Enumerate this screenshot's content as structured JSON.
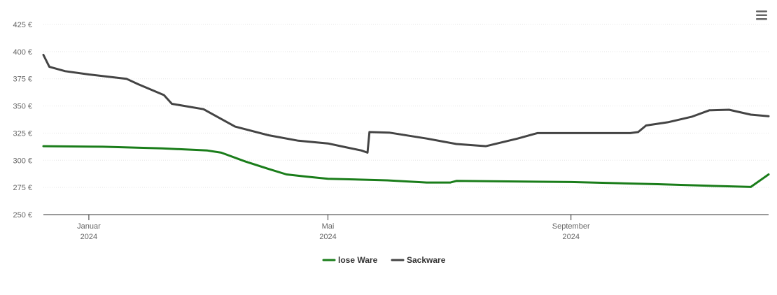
{
  "chart_data": {
    "type": "line",
    "y_tick_labels": [
      "250 €",
      "275 €",
      "300 €",
      "325 €",
      "350 €",
      "375 €",
      "400 €",
      "425 €"
    ],
    "ylim": [
      250,
      425
    ],
    "x_ticks": [
      {
        "date": "2024-01-01",
        "label": "Januar",
        "year": "2024"
      },
      {
        "date": "2024-05-01",
        "label": "Mai",
        "year": "2024"
      },
      {
        "date": "2024-09-01",
        "label": "September",
        "year": "2024"
      }
    ],
    "xlim": [
      "2023-12-09",
      "2024-12-10"
    ],
    "grid": true,
    "legend_position": "bottom-center",
    "series": [
      {
        "name": "lose Ware",
        "color": "#1a7d1a",
        "points": [
          [
            "2023-12-09",
            313
          ],
          [
            "2024-01-08",
            312.5
          ],
          [
            "2024-02-07",
            311
          ],
          [
            "2024-03-01",
            309
          ],
          [
            "2024-03-08",
            307
          ],
          [
            "2024-03-20",
            299
          ],
          [
            "2024-04-01",
            292
          ],
          [
            "2024-04-10",
            287
          ],
          [
            "2024-04-20",
            285
          ],
          [
            "2024-05-01",
            283
          ],
          [
            "2024-05-31",
            281.5
          ],
          [
            "2024-06-20",
            279.5
          ],
          [
            "2024-07-02",
            279.5
          ],
          [
            "2024-07-05",
            281
          ],
          [
            "2024-09-01",
            280
          ],
          [
            "2024-10-15",
            278
          ],
          [
            "2024-11-10",
            276.5
          ],
          [
            "2024-12-01",
            275.5
          ],
          [
            "2024-12-10",
            287
          ]
        ]
      },
      {
        "name": "Sackware",
        "color": "#444444",
        "points": [
          [
            "2023-12-09",
            397
          ],
          [
            "2023-12-12",
            386
          ],
          [
            "2023-12-20",
            382
          ],
          [
            "2024-01-01",
            379
          ],
          [
            "2024-01-20",
            375
          ],
          [
            "2024-01-26",
            370
          ],
          [
            "2024-02-08",
            360
          ],
          [
            "2024-02-12",
            352
          ],
          [
            "2024-02-28",
            347
          ],
          [
            "2024-03-06",
            340
          ],
          [
            "2024-03-15",
            331
          ],
          [
            "2024-04-01",
            323
          ],
          [
            "2024-04-16",
            318
          ],
          [
            "2024-05-01",
            315.5
          ],
          [
            "2024-05-10",
            312
          ],
          [
            "2024-05-18",
            309
          ],
          [
            "2024-05-21",
            307
          ],
          [
            "2024-05-22",
            326
          ],
          [
            "2024-06-01",
            325.5
          ],
          [
            "2024-06-20",
            320
          ],
          [
            "2024-07-05",
            315
          ],
          [
            "2024-07-20",
            313
          ],
          [
            "2024-08-05",
            320
          ],
          [
            "2024-08-15",
            325
          ],
          [
            "2024-10-01",
            325
          ],
          [
            "2024-10-05",
            326
          ],
          [
            "2024-10-09",
            332
          ],
          [
            "2024-10-20",
            335
          ],
          [
            "2024-11-01",
            340
          ],
          [
            "2024-11-10",
            346
          ],
          [
            "2024-11-20",
            346.5
          ],
          [
            "2024-12-01",
            342
          ],
          [
            "2024-12-10",
            340.5
          ]
        ]
      }
    ]
  }
}
